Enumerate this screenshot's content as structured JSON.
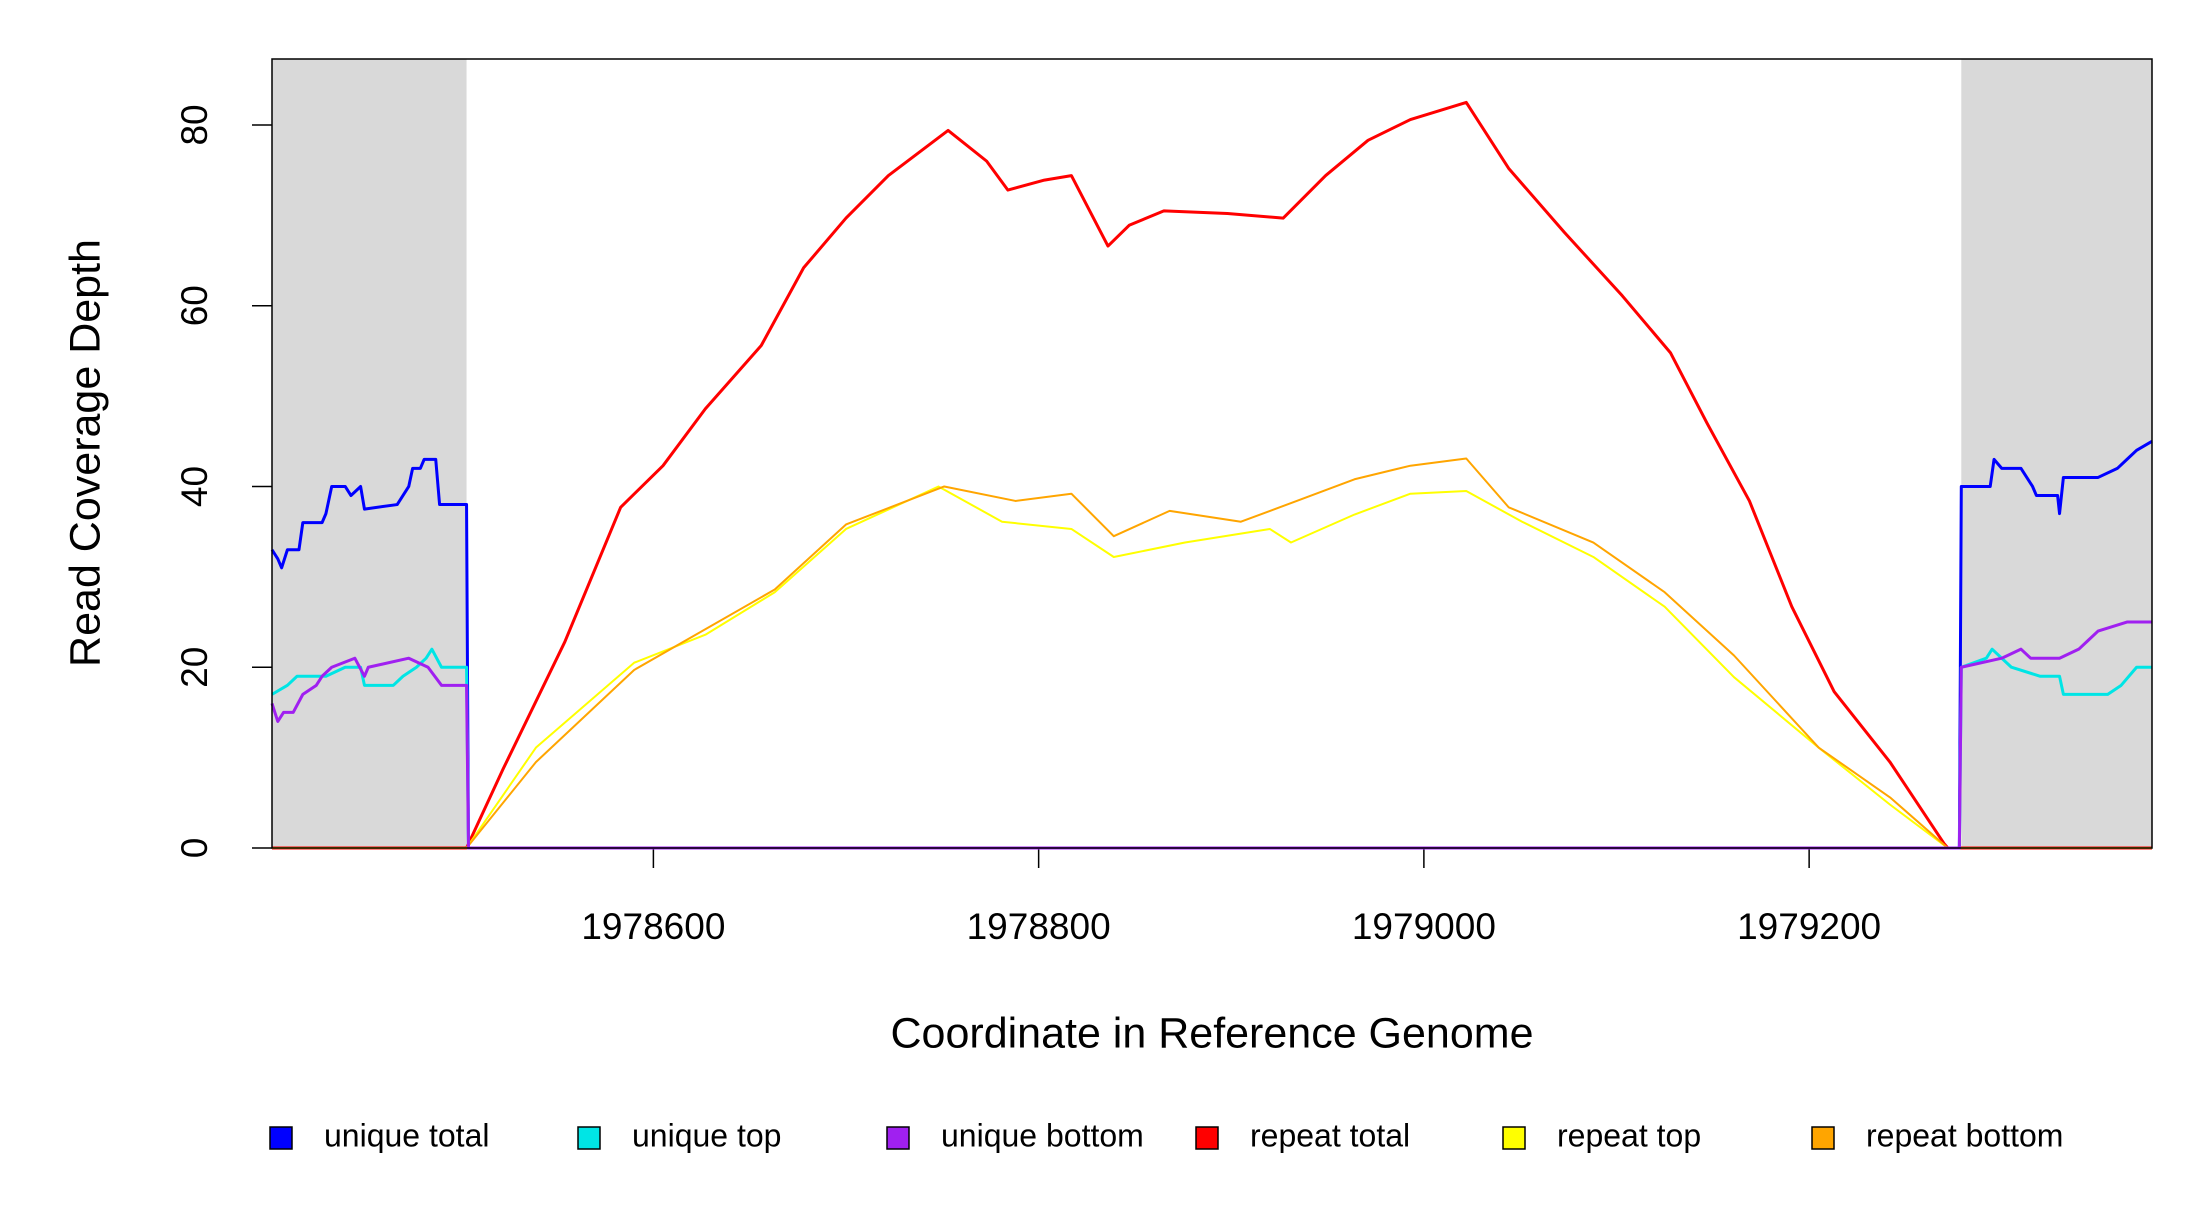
{
  "chart_data": {
    "type": "line",
    "xlabel": "Coordinate in Reference Genome",
    "ylabel": "Read Coverage Depth",
    "xlim": [
      1978402,
      1979378
    ],
    "ylim": [
      0,
      87.3
    ],
    "xticks": [
      1978600,
      1978800,
      1979000,
      1979200
    ],
    "yticks": [
      0,
      20,
      40,
      60,
      80
    ],
    "shaded_regions": [
      [
        1978402,
        1978503
      ],
      [
        1979279,
        1979378
      ]
    ],
    "shade_color": "#d9d9d9",
    "legend": "bottom",
    "series": [
      {
        "name": "unique total",
        "color": "#0000ff",
        "x": [
          1978402,
          1978405,
          1978407,
          1978410,
          1978416,
          1978418,
          1978428,
          1978430,
          1978433,
          1978440,
          1978443,
          1978448,
          1978450,
          1978467,
          1978473,
          1978475,
          1978479,
          1978481,
          1978487,
          1978489,
          1978503,
          1978504,
          1979278,
          1979279,
          1979294,
          1979296,
          1979300,
          1979310,
          1979316,
          1979318,
          1979329,
          1979330,
          1979332,
          1979350,
          1979360,
          1979365,
          1979370,
          1979378
        ],
        "values": [
          33,
          32,
          31,
          33,
          33,
          36,
          36,
          37,
          40,
          40,
          39,
          40,
          37.5,
          38,
          40,
          42,
          42,
          43,
          43,
          38,
          38,
          0,
          0,
          40,
          40,
          43,
          42,
          42,
          40,
          39,
          39,
          37,
          41,
          41,
          42,
          43,
          44,
          45
        ]
      },
      {
        "name": "unique top",
        "color": "#00e5e5",
        "x": [
          1978402,
          1978410,
          1978415,
          1978430,
          1978440,
          1978448,
          1978450,
          1978465,
          1978470,
          1978477,
          1978482,
          1978485,
          1978490,
          1978503,
          1978504,
          1979278,
          1979279,
          1979292,
          1979295,
          1979305,
          1979320,
          1979330,
          1979332,
          1979355,
          1979362,
          1979370,
          1979378
        ],
        "values": [
          17,
          18,
          19,
          19,
          20,
          20,
          18,
          18,
          19,
          20,
          21,
          22,
          20,
          20,
          0,
          0,
          20,
          21,
          22,
          20,
          19,
          19,
          17,
          17,
          18,
          20,
          20
        ]
      },
      {
        "name": "unique bottom",
        "color": "#a020f0",
        "x": [
          1978402,
          1978405,
          1978408,
          1978413,
          1978418,
          1978425,
          1978428,
          1978433,
          1978445,
          1978450,
          1978452,
          1978473,
          1978483,
          1978490,
          1978503,
          1978504,
          1979278,
          1979279,
          1979300,
          1979310,
          1979315,
          1979330,
          1979340,
          1979345,
          1979350,
          1979365,
          1979378
        ],
        "values": [
          16,
          14,
          15,
          15,
          17,
          18,
          19,
          20,
          21,
          19,
          20,
          21,
          20,
          18,
          18,
          0,
          0,
          20,
          21,
          22,
          21,
          21,
          22,
          23,
          24,
          25,
          25
        ]
      },
      {
        "name": "repeat total",
        "color": "#ff0000",
        "x": [
          1978402,
          1978503,
          1978522,
          1978554,
          1978583,
          1978605,
          1978627,
          1978656,
          1978678,
          1978700,
          1978722,
          1978753,
          1978773,
          1978784,
          1978803,
          1978817,
          1978836,
          1978847,
          1978865,
          1978898,
          1978927,
          1978949,
          1978971,
          1978993,
          1979022,
          1979044,
          1979073,
          1979103,
          1979128,
          1979147,
          1979169,
          1979191,
          1979213,
          1979242,
          1979270,
          1979272,
          1979378
        ],
        "values": [
          0,
          0,
          8.75,
          22.8,
          37.7,
          42.3,
          48.6,
          55.6,
          64.2,
          69.7,
          74.4,
          79.4,
          76,
          72.8,
          73.9,
          74.4,
          66.6,
          68.9,
          70.5,
          70.2,
          69.7,
          74.4,
          78.3,
          80.6,
          82.5,
          75.2,
          68.1,
          61.1,
          54.8,
          47,
          38.4,
          26.7,
          17.3,
          9.5,
          0.5,
          0,
          0
        ]
      },
      {
        "name": "repeat top",
        "color": "#ffff00",
        "x": [
          1978402,
          1978503,
          1978539,
          1978590,
          1978627,
          1978663,
          1978700,
          1978748,
          1978781,
          1978817,
          1978839,
          1978876,
          1978920,
          1978931,
          1978964,
          1978993,
          1979022,
          1979051,
          1979088,
          1979125,
          1979161,
          1979205,
          1979242,
          1979272,
          1979378
        ],
        "values": [
          0,
          0,
          11.1,
          20.5,
          23.6,
          28.3,
          35.3,
          40,
          36.1,
          35.3,
          32.2,
          33.8,
          35.3,
          33.8,
          36.9,
          39.2,
          39.5,
          36.1,
          32.2,
          26.7,
          18.9,
          11.1,
          4.8,
          0,
          0
        ]
      },
      {
        "name": "repeat bottom",
        "color": "#ffa500",
        "x": [
          1978402,
          1978503,
          1978539,
          1978590,
          1978663,
          1978700,
          1978751,
          1978788,
          1978817,
          1978839,
          1978868,
          1978905,
          1978934,
          1978964,
          1978993,
          1979022,
          1979044,
          1979088,
          1979125,
          1979161,
          1979205,
          1979242,
          1979272,
          1979378
        ],
        "values": [
          0,
          0,
          9.5,
          19.7,
          28.6,
          35.8,
          40,
          38.4,
          39.2,
          34.5,
          37.3,
          36.1,
          38.4,
          40.8,
          42.3,
          43.1,
          37.7,
          33.8,
          28.3,
          21.3,
          11.1,
          5.6,
          0,
          0
        ]
      }
    ]
  }
}
